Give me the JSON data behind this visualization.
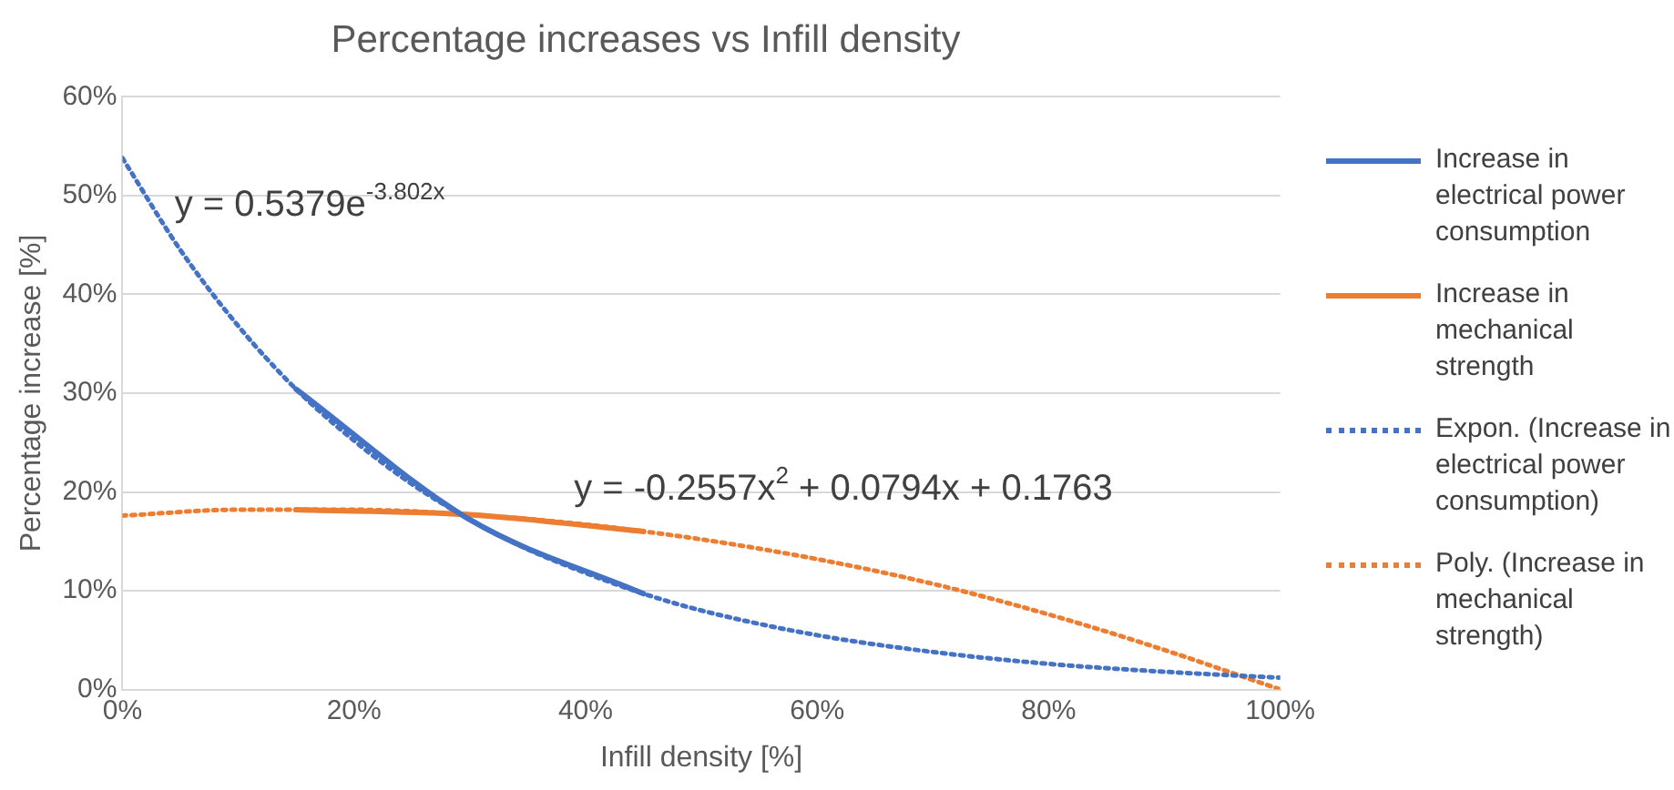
{
  "chart_data": {
    "type": "line",
    "title": "Percentage increases vs Infill density",
    "xlabel": "Infill density [%]",
    "ylabel": "Percentage increase [%]",
    "xlim": [
      0,
      100
    ],
    "ylim": [
      0,
      60
    ],
    "xticks": [
      {
        "value": 0,
        "label": "0%"
      },
      {
        "value": 20,
        "label": "20%"
      },
      {
        "value": 40,
        "label": "40%"
      },
      {
        "value": 60,
        "label": "60%"
      },
      {
        "value": 80,
        "label": "80%"
      },
      {
        "value": 100,
        "label": "100%"
      }
    ],
    "yticks": [
      {
        "value": 0,
        "label": "0%"
      },
      {
        "value": 10,
        "label": "10%"
      },
      {
        "value": 20,
        "label": "20%"
      },
      {
        "value": 30,
        "label": "30%"
      },
      {
        "value": 40,
        "label": "40%"
      },
      {
        "value": 50,
        "label": "50%"
      },
      {
        "value": 60,
        "label": "60%"
      }
    ],
    "grid": "y",
    "legend": "right",
    "marker": "none",
    "series": [
      {
        "name": "Increase in electrical power consumption",
        "color": "#4472c4",
        "line_style": "solid",
        "x": [
          15,
          30,
          45
        ],
        "values": [
          30.4,
          17.2,
          9.7
        ]
      },
      {
        "name": "Increase in mechanical strength",
        "color": "#ed7d31",
        "line_style": "solid",
        "x": [
          15,
          30,
          45
        ],
        "values": [
          18.2,
          17.7,
          16.0
        ]
      },
      {
        "name": "Expon. (Increase in electrical power consumption)",
        "color": "#4472c4",
        "line_style": "dotted",
        "x": [
          0,
          5,
          10,
          15,
          20,
          25,
          30,
          35,
          40,
          45,
          50,
          60,
          70,
          80,
          90,
          100
        ],
        "values": [
          53.8,
          44.5,
          36.8,
          30.4,
          25.2,
          20.8,
          17.2,
          14.2,
          11.8,
          9.7,
          8.0,
          5.5,
          3.8,
          2.6,
          1.8,
          1.2
        ]
      },
      {
        "name": "Poly. (Increase in mechanical strength)",
        "color": "#ed7d31",
        "line_style": "dotted",
        "x": [
          0,
          10,
          20,
          30,
          40,
          50,
          60,
          70,
          80,
          90,
          100
        ],
        "values": [
          17.6,
          18.2,
          18.2,
          17.7,
          16.7,
          15.2,
          13.2,
          10.7,
          7.6,
          4.0,
          0.0
        ]
      }
    ],
    "annotations": [
      "y = 0.5379e$^{-3.802x}$",
      "y = -0.2557x$^{2}$ + 0.0794x + 0.1763"
    ]
  }
}
